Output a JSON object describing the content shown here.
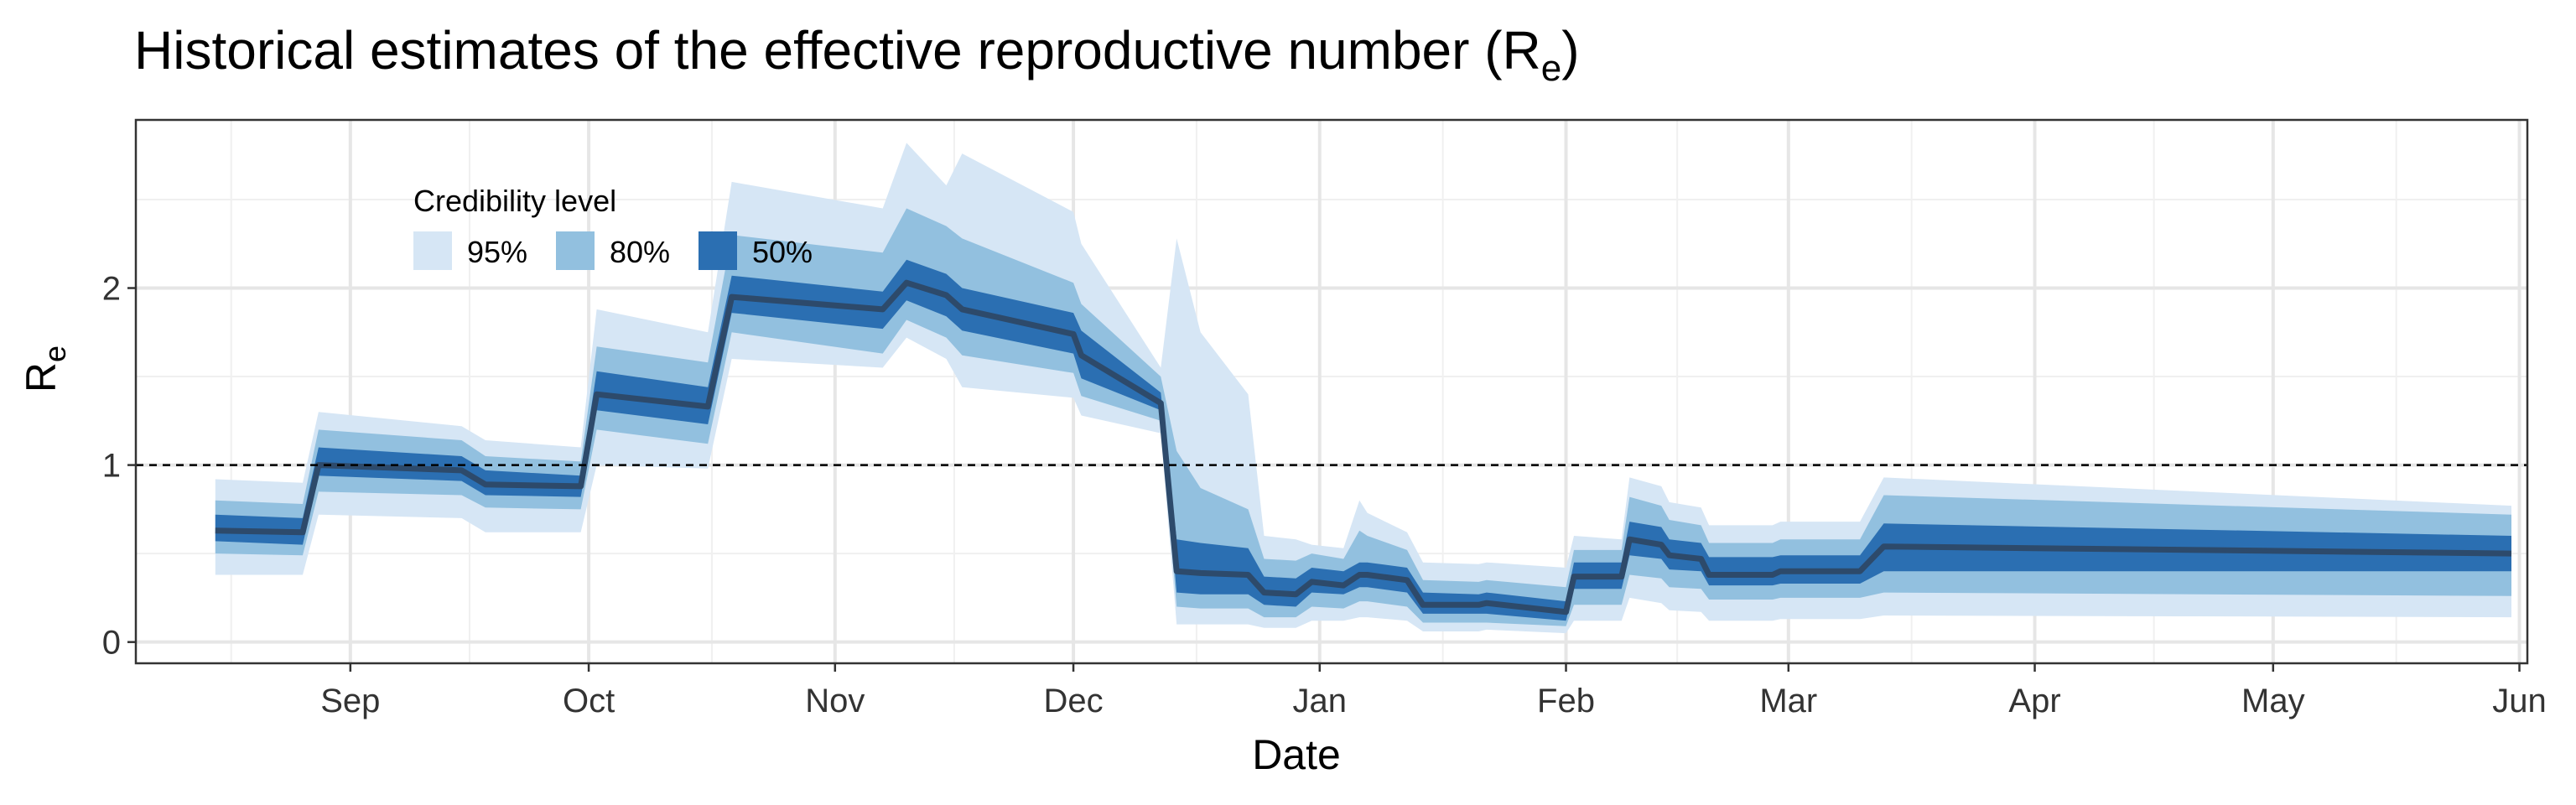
{
  "chart_data": {
    "type": "area",
    "title_main": "Historical estimates of the effective reproductive number (R",
    "title_sub": "e",
    "title_close": ")",
    "xlabel": "Date",
    "ylabel_main": "R",
    "ylabel_sub": "e",
    "date_start": "Aug 15",
    "date_end": "Jun 2",
    "xlim_days": [
      -10,
      291
    ],
    "ylim": [
      -0.12,
      2.95
    ],
    "y_ticks": [
      0,
      1,
      2
    ],
    "y_tick_labels": [
      "0",
      "1",
      "2"
    ],
    "x_ticks": [
      {
        "label": "Sep",
        "day": 17
      },
      {
        "label": "Oct",
        "day": 47
      },
      {
        "label": "Nov",
        "day": 78
      },
      {
        "label": "Dec",
        "day": 108
      },
      {
        "label": "Jan",
        "day": 139
      },
      {
        "label": "Feb",
        "day": 170
      },
      {
        "label": "Mar",
        "day": 198
      },
      {
        "label": "Apr",
        "day": 229
      },
      {
        "label": "May",
        "day": 259
      },
      {
        "label": "Jun",
        "day": 290
      }
    ],
    "reference_line": {
      "y": 1,
      "style": "dashed"
    },
    "grid": true,
    "legend": {
      "title": "Credibility level",
      "placement": "top-left",
      "items": [
        {
          "label": "95%",
          "color": "#d6e6f5"
        },
        {
          "label": "80%",
          "color": "#92c0df"
        },
        {
          "label": "50%",
          "color": "#2b6fb2"
        }
      ]
    },
    "median_color": "#2d4a6b",
    "days": [
      0,
      11,
      13,
      31,
      34,
      46,
      48,
      62,
      65,
      84,
      87,
      92,
      94,
      108,
      109,
      119,
      121,
      124,
      130,
      132,
      136,
      138,
      142,
      144,
      145,
      150,
      152,
      159,
      160,
      170,
      171,
      177,
      178,
      182,
      183,
      187,
      188,
      196,
      197,
      207,
      210,
      289
    ],
    "median": [
      0.63,
      0.62,
      1.0,
      0.97,
      0.89,
      0.88,
      1.4,
      1.33,
      1.95,
      1.88,
      2.03,
      1.96,
      1.88,
      1.74,
      1.62,
      1.35,
      0.4,
      0.39,
      0.38,
      0.28,
      0.27,
      0.34,
      0.32,
      0.38,
      0.38,
      0.35,
      0.21,
      0.21,
      0.22,
      0.17,
      0.37,
      0.37,
      0.58,
      0.55,
      0.49,
      0.47,
      0.38,
      0.38,
      0.4,
      0.4,
      0.54,
      0.5
    ],
    "lo50": [
      0.57,
      0.55,
      0.94,
      0.91,
      0.83,
      0.82,
      1.31,
      1.23,
      1.86,
      1.77,
      1.93,
      1.84,
      1.76,
      1.63,
      1.49,
      1.31,
      0.28,
      0.27,
      0.27,
      0.21,
      0.2,
      0.28,
      0.27,
      0.31,
      0.31,
      0.28,
      0.16,
      0.16,
      0.16,
      0.12,
      0.3,
      0.3,
      0.49,
      0.47,
      0.41,
      0.4,
      0.32,
      0.32,
      0.33,
      0.33,
      0.4,
      0.4
    ],
    "hi50": [
      0.72,
      0.7,
      1.1,
      1.05,
      0.97,
      0.94,
      1.53,
      1.44,
      2.07,
      1.98,
      2.16,
      2.08,
      2.0,
      1.86,
      1.76,
      1.41,
      0.58,
      0.56,
      0.53,
      0.37,
      0.36,
      0.42,
      0.4,
      0.45,
      0.45,
      0.42,
      0.28,
      0.27,
      0.28,
      0.23,
      0.45,
      0.45,
      0.68,
      0.65,
      0.58,
      0.56,
      0.48,
      0.48,
      0.49,
      0.49,
      0.67,
      0.6
    ],
    "lo80": [
      0.5,
      0.49,
      0.85,
      0.83,
      0.76,
      0.75,
      1.2,
      1.12,
      1.75,
      1.63,
      1.82,
      1.72,
      1.62,
      1.52,
      1.39,
      1.25,
      0.2,
      0.19,
      0.19,
      0.14,
      0.14,
      0.2,
      0.19,
      0.23,
      0.23,
      0.2,
      0.11,
      0.11,
      0.11,
      0.09,
      0.21,
      0.21,
      0.38,
      0.36,
      0.31,
      0.3,
      0.24,
      0.24,
      0.25,
      0.25,
      0.28,
      0.26
    ],
    "hi80": [
      0.8,
      0.78,
      1.2,
      1.14,
      1.05,
      1.02,
      1.67,
      1.58,
      2.3,
      2.2,
      2.45,
      2.35,
      2.28,
      2.03,
      1.91,
      1.5,
      1.08,
      0.87,
      0.75,
      0.47,
      0.46,
      0.5,
      0.47,
      0.63,
      0.6,
      0.52,
      0.35,
      0.34,
      0.35,
      0.31,
      0.52,
      0.52,
      0.82,
      0.77,
      0.69,
      0.66,
      0.56,
      0.56,
      0.58,
      0.58,
      0.83,
      0.72
    ],
    "lo95": [
      0.38,
      0.38,
      0.72,
      0.7,
      0.62,
      0.62,
      1.0,
      0.98,
      1.6,
      1.55,
      1.72,
      1.6,
      1.44,
      1.38,
      1.28,
      1.18,
      0.1,
      0.1,
      0.1,
      0.08,
      0.08,
      0.12,
      0.12,
      0.14,
      0.14,
      0.12,
      0.06,
      0.06,
      0.07,
      0.05,
      0.12,
      0.12,
      0.25,
      0.22,
      0.18,
      0.17,
      0.12,
      0.12,
      0.13,
      0.13,
      0.15,
      0.14
    ],
    "hi95": [
      0.92,
      0.9,
      1.3,
      1.22,
      1.14,
      1.1,
      1.88,
      1.75,
      2.6,
      2.45,
      2.82,
      2.58,
      2.76,
      2.43,
      2.25,
      1.55,
      2.28,
      1.75,
      1.4,
      0.6,
      0.58,
      0.55,
      0.53,
      0.8,
      0.73,
      0.62,
      0.45,
      0.44,
      0.45,
      0.42,
      0.6,
      0.58,
      0.93,
      0.88,
      0.79,
      0.76,
      0.66,
      0.66,
      0.68,
      0.68,
      0.93,
      0.77
    ]
  }
}
